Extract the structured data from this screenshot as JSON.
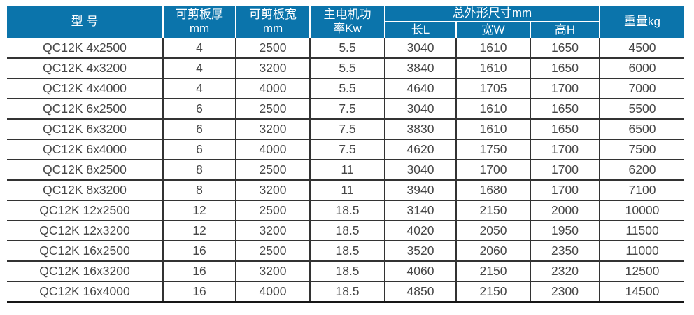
{
  "colors": {
    "header_bg": "#0b74ab",
    "header_text": "#ffffff",
    "body_text": "#464646",
    "grid_line": "#333333",
    "bottom_line": "#161616",
    "separator": "#ffffff",
    "page_bg": "#ffffff"
  },
  "table": {
    "header": {
      "model": "型 号",
      "thickness": {
        "line1": "可剪板厚",
        "line2": "mm"
      },
      "width": {
        "line1": "可剪板宽",
        "line2": "mm"
      },
      "power": {
        "line1": "主电机功",
        "line2": "率Kw"
      },
      "dims_group": "总外形尺寸mm",
      "dim_length": "长L",
      "dim_width": "宽W",
      "dim_height": "高H",
      "weight": "重量kg"
    },
    "rows": [
      [
        "QC12K 4x2500",
        "4",
        "2500",
        "5.5",
        "3040",
        "1610",
        "1650",
        "4500"
      ],
      [
        "QC12K 4x3200",
        "4",
        "3200",
        "5.5",
        "3840",
        "1610",
        "1650",
        "6000"
      ],
      [
        "QC12K 4x4000",
        "4",
        "4000",
        "5.5",
        "4640",
        "1705",
        "1700",
        "7000"
      ],
      [
        "QC12K 6x2500",
        "6",
        "2500",
        "7.5",
        "3040",
        "1610",
        "1650",
        "5500"
      ],
      [
        "QC12K 6x3200",
        "6",
        "3200",
        "7.5",
        "3830",
        "1610",
        "1650",
        "6500"
      ],
      [
        "QC12K 6x4000",
        "6",
        "4000",
        "7.5",
        "4620",
        "1750",
        "1700",
        "7500"
      ],
      [
        "QC12K 8x2500",
        "8",
        "2500",
        "11",
        "3040",
        "1700",
        "1700",
        "6200"
      ],
      [
        "QC12K 8x3200",
        "8",
        "3200",
        "11",
        "3940",
        "1680",
        "1700",
        "7100"
      ],
      [
        "QC12K 12x2500",
        "12",
        "2500",
        "18.5",
        "3140",
        "2150",
        "2000",
        "10000"
      ],
      [
        "QC12K 12x3200",
        "12",
        "3200",
        "18.5",
        "4020",
        "2050",
        "1950",
        "11500"
      ],
      [
        "QC12K 16x2500",
        "16",
        "2500",
        "18.5",
        "3520",
        "2060",
        "2350",
        "11000"
      ],
      [
        "QC12K 16x3200",
        "16",
        "3200",
        "18.5",
        "4060",
        "2150",
        "2320",
        "12500"
      ],
      [
        "QC12K 16x4000",
        "16",
        "4000",
        "18.5",
        "4850",
        "2150",
        "2300",
        "14500"
      ]
    ]
  }
}
